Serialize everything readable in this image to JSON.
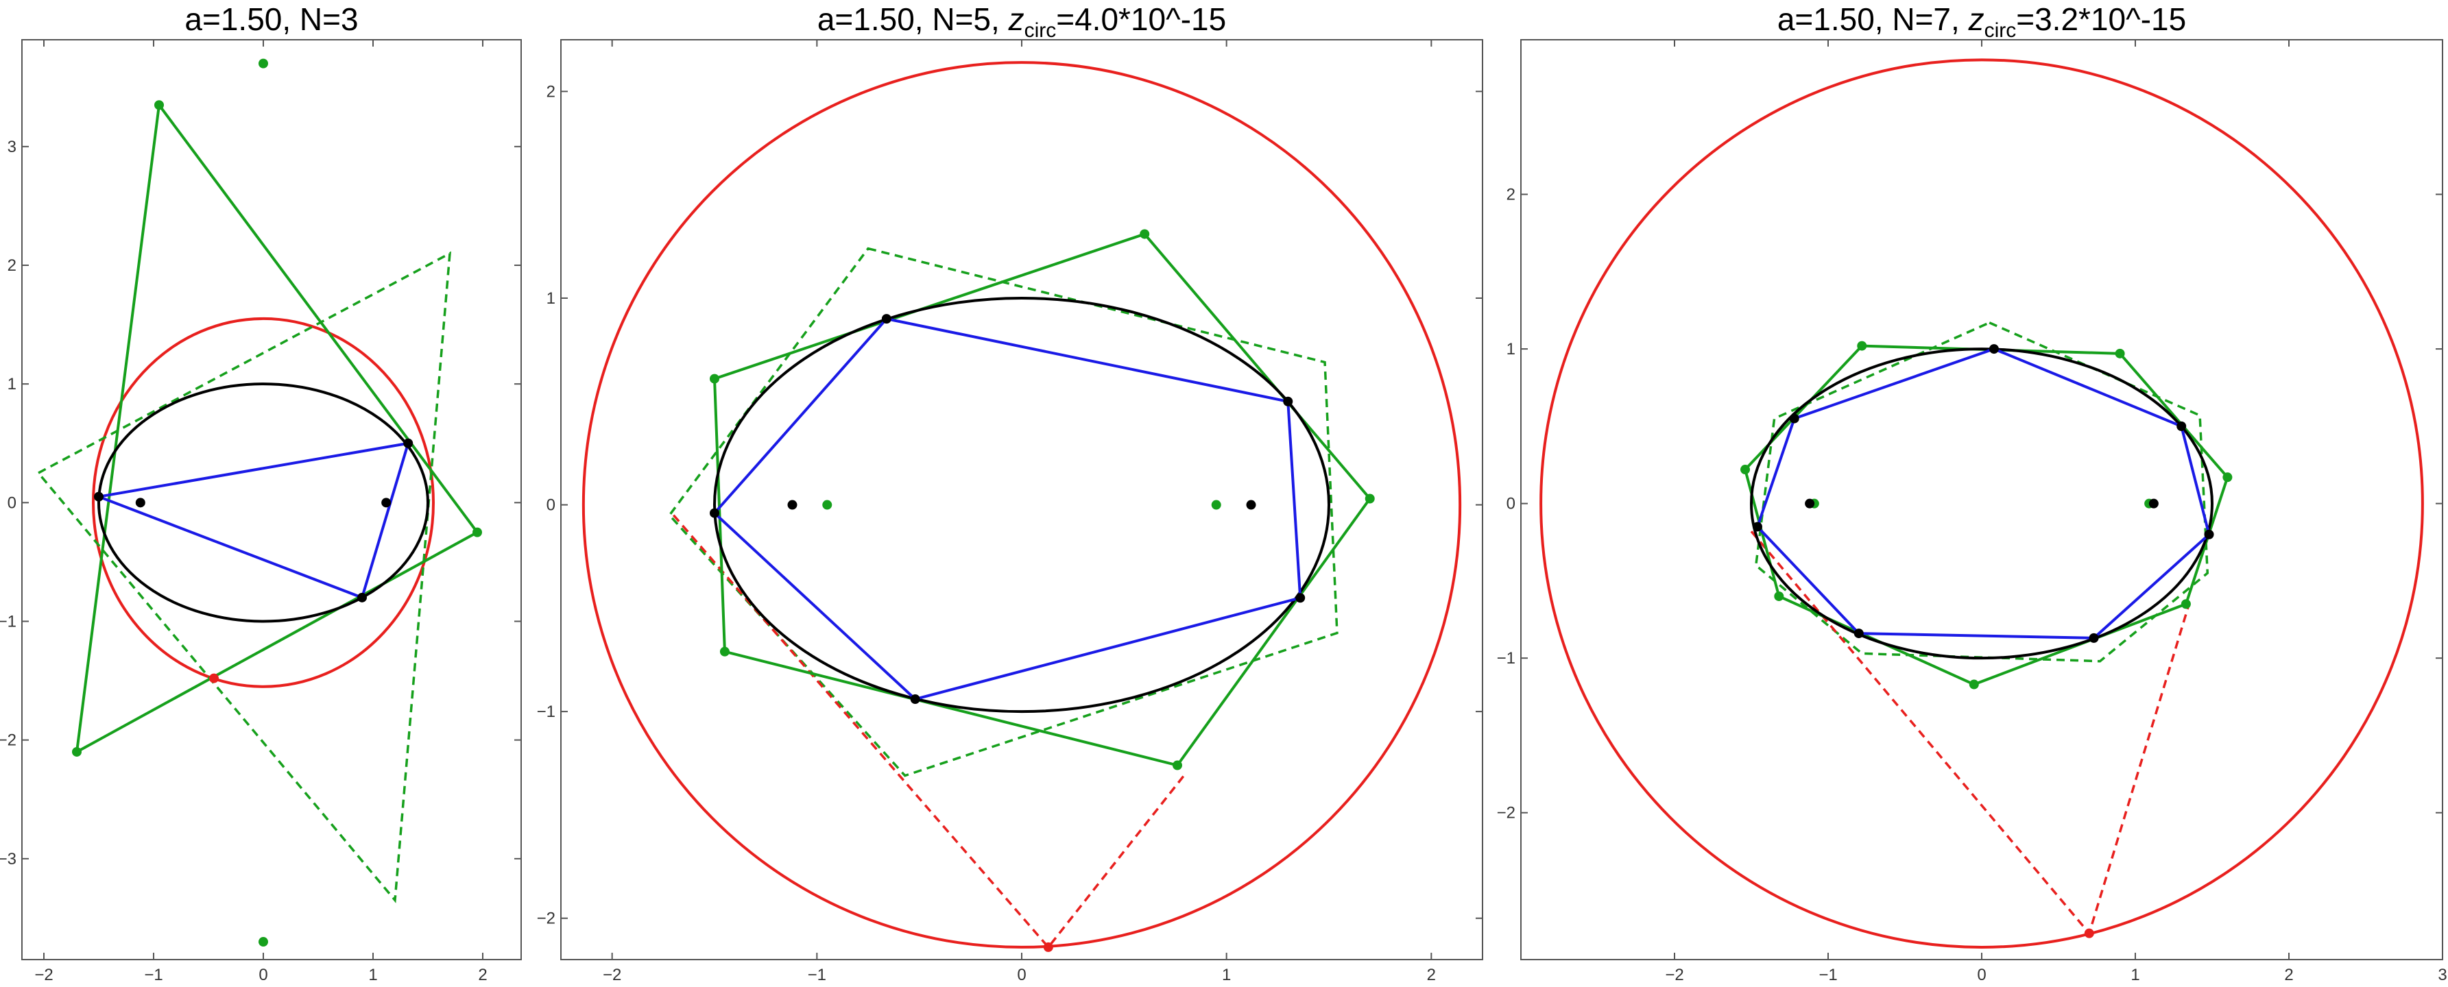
{
  "panels": [
    {
      "title": {
        "main": "a=1.50, N=3",
        "z_part": null
      },
      "xlim": [
        -2.2,
        2.35
      ],
      "ylim": [
        -3.85,
        3.9
      ],
      "x_ticks": [
        {
          "v": -2,
          "label": "-2"
        },
        {
          "v": -1,
          "label": "-1"
        },
        {
          "v": 0,
          "label": "0"
        },
        {
          "v": 1,
          "label": "1"
        },
        {
          "v": 2,
          "label": "2"
        }
      ],
      "y_ticks": [
        {
          "v": -3,
          "label": "-3"
        },
        {
          "v": -2,
          "label": "-2"
        },
        {
          "v": -1,
          "label": "-1"
        },
        {
          "v": 0,
          "label": "0"
        },
        {
          "v": 1,
          "label": "1"
        },
        {
          "v": 2,
          "label": "2"
        },
        {
          "v": 3,
          "label": "3"
        }
      ],
      "ellipse": {
        "a": 1.5,
        "b": 1.0
      },
      "red_circle": {
        "cx": 0,
        "cy": 0,
        "r": 1.55
      },
      "blue_polygon": [
        [
          -1.5,
          0.05
        ],
        [
          1.32,
          0.5
        ],
        [
          0.9,
          -0.8
        ]
      ],
      "green_polygon": [
        [
          -0.95,
          3.35
        ],
        [
          1.95,
          -0.25
        ],
        [
          -1.7,
          -2.1
        ]
      ],
      "green_dashed_polygon": [
        [
          -2.05,
          0.25
        ],
        [
          1.7,
          2.1
        ],
        [
          1.2,
          -3.35
        ]
      ],
      "red_dashed": [],
      "black_points": [
        [
          -1.5,
          0.05
        ],
        [
          1.32,
          0.5
        ],
        [
          0.9,
          -0.8
        ],
        [
          -1.12,
          0.0
        ],
        [
          1.12,
          0.0
        ]
      ],
      "green_points": [
        [
          -0.95,
          3.35
        ],
        [
          1.95,
          -0.25
        ],
        [
          -1.7,
          -2.1
        ],
        [
          0.0,
          3.7
        ],
        [
          0.0,
          -3.7
        ]
      ],
      "red_points": [
        [
          -0.45,
          -1.48
        ]
      ]
    },
    {
      "title": {
        "main": "a=1.50, N=5, ",
        "z_part": {
          "z": "z",
          "sub": "circ",
          "rest": "=4.0*10^-15"
        }
      },
      "xlim": [
        -2.25,
        2.25
      ],
      "ylim": [
        -2.2,
        2.25
      ],
      "x_ticks": [
        {
          "v": -2,
          "label": "-2"
        },
        {
          "v": -1,
          "label": "-1"
        },
        {
          "v": 0,
          "label": "0"
        },
        {
          "v": 1,
          "label": "1"
        },
        {
          "v": 2,
          "label": "2"
        }
      ],
      "y_ticks": [
        {
          "v": -2,
          "label": "-2"
        },
        {
          "v": -1,
          "label": "-1"
        },
        {
          "v": 0,
          "label": "0"
        },
        {
          "v": 1,
          "label": "1"
        },
        {
          "v": 2,
          "label": "2"
        }
      ],
      "ellipse": {
        "a": 1.5,
        "b": 1.0
      },
      "red_circle": {
        "cx": 0,
        "cy": 0,
        "r": 2.14
      },
      "blue_polygon": [
        [
          -0.66,
          0.9
        ],
        [
          1.3,
          0.5
        ],
        [
          1.36,
          -0.45
        ],
        [
          -0.52,
          -0.94
        ],
        [
          -1.5,
          -0.04
        ]
      ],
      "green_polygon": [
        [
          0.6,
          1.31
        ],
        [
          1.7,
          0.03
        ],
        [
          0.76,
          -1.26
        ],
        [
          -1.45,
          -0.71
        ],
        [
          -1.5,
          0.61
        ]
      ],
      "green_dashed_polygon": [
        [
          -0.75,
          1.24
        ],
        [
          1.48,
          0.69
        ],
        [
          1.54,
          -0.62
        ],
        [
          -0.57,
          -1.31
        ],
        [
          -1.72,
          -0.05
        ]
      ],
      "red_dashed": [
        [
          -1.7,
          -0.05
        ],
        [
          0.13,
          -2.14
        ],
        [
          0.8,
          -1.3
        ]
      ],
      "black_points": [
        [
          -0.66,
          0.9
        ],
        [
          1.3,
          0.5
        ],
        [
          1.36,
          -0.45
        ],
        [
          -0.52,
          -0.94
        ],
        [
          -1.5,
          -0.04
        ],
        [
          -1.12,
          0.0
        ],
        [
          1.12,
          0.0
        ]
      ],
      "green_points": [
        [
          0.6,
          1.31
        ],
        [
          1.7,
          0.03
        ],
        [
          0.76,
          -1.26
        ],
        [
          -1.45,
          -0.71
        ],
        [
          -1.5,
          0.61
        ],
        [
          -0.95,
          0.0
        ],
        [
          0.95,
          0.0
        ]
      ],
      "red_points": [
        [
          0.13,
          -2.14
        ]
      ]
    },
    {
      "title": {
        "main": "a=1.50, N=7, ",
        "z_part": {
          "z": "z",
          "sub": "circ",
          "rest": "=3.2*10^-15"
        }
      },
      "xlim": [
        -3.0,
        3.0
      ],
      "ylim": [
        -2.95,
        3.0
      ],
      "x_ticks": [
        {
          "v": -2,
          "label": "-2"
        },
        {
          "v": -1,
          "label": "-1"
        },
        {
          "v": 0,
          "label": "0"
        },
        {
          "v": 1,
          "label": "1"
        },
        {
          "v": 2,
          "label": "2"
        },
        {
          "v": 3,
          "label": "3"
        }
      ],
      "y_ticks": [
        {
          "v": -2,
          "label": "-2"
        },
        {
          "v": -1,
          "label": "-1"
        },
        {
          "v": 0,
          "label": "0"
        },
        {
          "v": 1,
          "label": "1"
        },
        {
          "v": 2,
          "label": "2"
        }
      ],
      "ellipse": {
        "a": 1.5,
        "b": 1.0
      },
      "red_circle": {
        "cx": 0,
        "cy": 0,
        "r": 2.87
      },
      "blue_polygon": [
        [
          0.08,
          1.0
        ],
        [
          1.3,
          0.5
        ],
        [
          1.48,
          -0.2
        ],
        [
          0.73,
          -0.87
        ],
        [
          -0.8,
          -0.84
        ],
        [
          -1.46,
          -0.15
        ],
        [
          -1.22,
          0.55
        ]
      ],
      "green_polygon": [
        [
          -0.78,
          1.02
        ],
        [
          0.9,
          0.97
        ],
        [
          1.6,
          0.17
        ],
        [
          1.33,
          -0.65
        ],
        [
          -0.05,
          -1.17
        ],
        [
          -1.32,
          -0.6
        ],
        [
          -1.54,
          0.22
        ]
      ],
      "green_dashed_polygon": [
        [
          0.05,
          1.17
        ],
        [
          1.42,
          0.57
        ],
        [
          1.47,
          -0.45
        ],
        [
          0.77,
          -1.02
        ],
        [
          -0.78,
          -0.97
        ],
        [
          -1.47,
          -0.4
        ],
        [
          -1.35,
          0.55
        ]
      ],
      "red_dashed": [
        [
          -1.5,
          -0.18
        ],
        [
          0.7,
          -2.78
        ],
        [
          1.35,
          -0.65
        ]
      ],
      "black_points": [
        [
          0.08,
          1.0
        ],
        [
          1.3,
          0.5
        ],
        [
          1.48,
          -0.2
        ],
        [
          0.73,
          -0.87
        ],
        [
          -0.8,
          -0.84
        ],
        [
          -1.46,
          -0.15
        ],
        [
          -1.22,
          0.55
        ],
        [
          -1.12,
          0.0
        ],
        [
          1.12,
          0.0
        ]
      ],
      "green_points": [
        [
          -0.78,
          1.02
        ],
        [
          0.9,
          0.97
        ],
        [
          1.6,
          0.17
        ],
        [
          1.33,
          -0.65
        ],
        [
          -0.05,
          -1.17
        ],
        [
          -1.32,
          -0.6
        ],
        [
          -1.54,
          0.22
        ],
        [
          -1.09,
          0.0
        ],
        [
          1.09,
          0.0
        ]
      ],
      "red_points": [
        [
          0.7,
          -2.78
        ]
      ]
    }
  ],
  "colors": {
    "ellipse": "#000000",
    "red": "#e8201e",
    "blue": "#1a1ae6",
    "green": "#16a01c",
    "points_black": "#000000"
  }
}
